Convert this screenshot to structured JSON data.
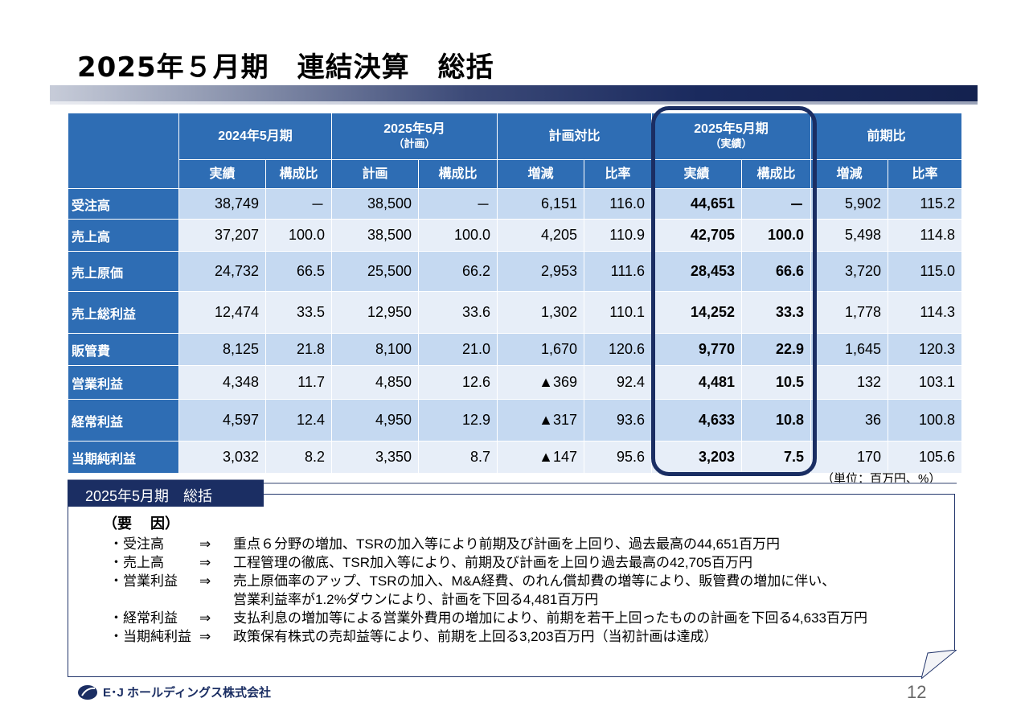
{
  "header": {
    "title": "2025年５月期　連結決算　総括"
  },
  "table": {
    "col_groups": [
      {
        "label": "2024年5月期",
        "sub": ""
      },
      {
        "label": "2025年5月",
        "sub": "（計画）"
      },
      {
        "label": "計画対比",
        "sub": ""
      },
      {
        "label": "2025年5月期",
        "sub": "（実績）"
      },
      {
        "label": "前期比",
        "sub": ""
      }
    ],
    "sub_headers": [
      "実績",
      "構成比",
      "計画",
      "構成比",
      "増減",
      "比率",
      "実績",
      "構成比",
      "増減",
      "比率"
    ],
    "rows": [
      {
        "label": "受注高",
        "values": [
          "38,749",
          "－",
          "38,500",
          "－",
          "6,151",
          "116.0",
          "44,651",
          "－",
          "5,902",
          "115.2"
        ]
      },
      {
        "label": "売上高",
        "values": [
          "37,207",
          "100.0",
          "38,500",
          "100.0",
          "4,205",
          "110.9",
          "42,705",
          "100.0",
          "5,498",
          "114.8"
        ]
      },
      {
        "label": "売上原価",
        "values": [
          "24,732",
          "66.5",
          "25,500",
          "66.2",
          "2,953",
          "111.6",
          "28,453",
          "66.6",
          "3,720",
          "115.0"
        ]
      },
      {
        "label": "売上総利益",
        "values": [
          "12,474",
          "33.5",
          "12,950",
          "33.6",
          "1,302",
          "110.1",
          "14,252",
          "33.3",
          "1,778",
          "114.3"
        ]
      },
      {
        "label": "販管費",
        "values": [
          "8,125",
          "21.8",
          "8,100",
          "21.0",
          "1,670",
          "120.6",
          "9,770",
          "22.9",
          "1,645",
          "120.3"
        ]
      },
      {
        "label": "営業利益",
        "values": [
          "4,348",
          "11.7",
          "4,850",
          "12.6",
          "▲369",
          "92.4",
          "4,481",
          "10.5",
          "132",
          "103.1"
        ]
      },
      {
        "label": "経常利益",
        "values": [
          "4,597",
          "12.4",
          "4,950",
          "12.9",
          "▲317",
          "93.6",
          "4,633",
          "10.8",
          "36",
          "100.8"
        ]
      },
      {
        "label": "当期純利益",
        "values": [
          "3,032",
          "8.2",
          "3,350",
          "8.7",
          "▲147",
          "95.6",
          "3,203",
          "7.5",
          "170",
          "105.6"
        ]
      }
    ],
    "unit": "（単位：百万円、%）"
  },
  "summary": {
    "tab_label": "2025年5月期　総括",
    "factors_heading": "（要　 因）",
    "arrow": "⇒",
    "items": [
      {
        "label": "・受注高",
        "text": "重点６分野の増加、TSRの加入等により前期及び計画を上回り、過去最高の44,651百万円"
      },
      {
        "label": "・売上高",
        "text": "工程管理の徹底、TSR加入等により、前期及び計画を上回り過去最高の42,705百万円"
      },
      {
        "label": "・営業利益",
        "text": "売上原価率のアップ、TSRの加入、M&A経費、のれん償却費の増等により、販管費の増加に伴い、"
      },
      {
        "label": "",
        "text": "営業利益率が1.2%ダウンにより、計画を下回る4,481百万円"
      },
      {
        "label": "・経常利益",
        "text": "支払利息の増加等による営業外費用の増加により、前期を若干上回ったものの計画を下回る4,633百万円"
      },
      {
        "label": "・当期純利益",
        "text": "政策保有株式の売却益等により、前期を上回る3,203百万円（当初計画は達成）"
      }
    ]
  },
  "footer": {
    "company": "E･J ホールディングス株式会社",
    "page_number": "12"
  },
  "colors": {
    "header_blue": "#2e6db4",
    "navy": "#1b2e63",
    "row_light": "#e7eef8",
    "row_mid": "#c5d9f1"
  }
}
